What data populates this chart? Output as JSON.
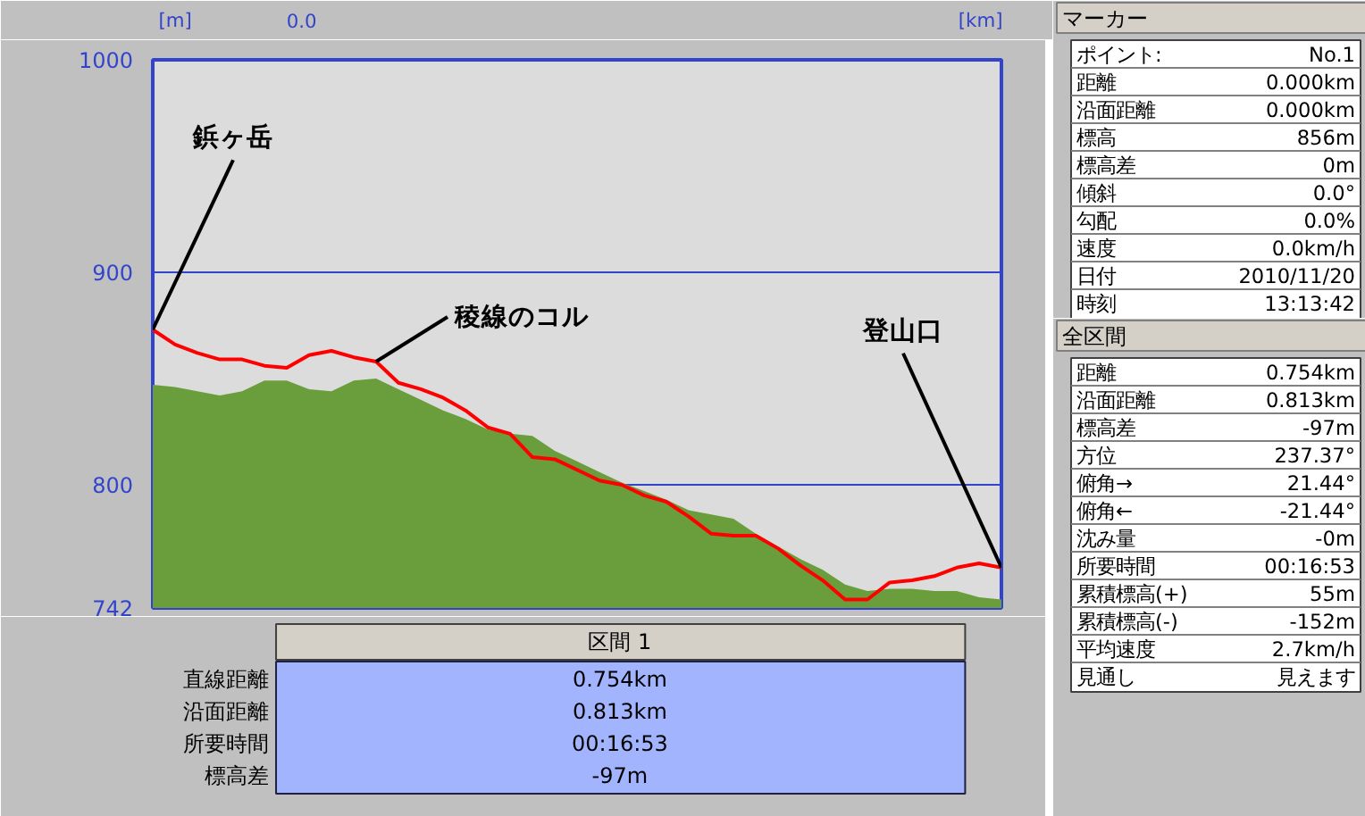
{
  "chart_data": {
    "type": "area",
    "xlabel": "[km]",
    "ylabel": "[m]",
    "ylim": [
      742,
      1000
    ],
    "yticks": [
      742,
      800,
      900,
      1000
    ],
    "grid": "y",
    "categories": [
      null,
      null,
      null,
      null,
      null,
      null,
      null,
      null,
      null,
      null,
      null,
      null,
      null,
      null,
      null,
      null,
      null,
      null,
      null,
      null,
      null,
      null,
      null,
      null,
      null,
      null,
      null,
      null,
      null,
      null,
      null,
      null,
      null,
      null,
      null,
      null,
      null,
      null,
      null
    ],
    "annotations": [
      "鋲ヶ岳",
      "稜線のコル",
      "登山口",
      "0.0",
      "区間 1",
      "直線距離",
      "0.754km",
      "沿面距離",
      "0.813km",
      "所要時間",
      "00:16:53",
      "標高差",
      "-97m",
      "マーカー",
      "ポイント:",
      "No.1",
      "距離",
      "0.000km",
      "沿面距離",
      "0.000km",
      "標高",
      "856m",
      "標高差",
      "0m",
      "傾斜",
      "0.0°",
      "勾配",
      "0.0%",
      "速度",
      "0.0km/h",
      "日付",
      "2010/11/20",
      "時刻",
      "13:13:42",
      "全区間",
      "距離",
      "0.754km",
      "沿面距離",
      "0.813km",
      "標高差",
      "-97m",
      "方位",
      "237.37°",
      "俯角→",
      "21.44°",
      "俯角←",
      "-21.44°",
      "沈み量",
      "-0m",
      "所要時間",
      "00:16:53",
      "累積標高(+)",
      "55m",
      "累積標高(-)",
      "-152m",
      "平均速度",
      "2.7km/h",
      "見通し",
      "見えます"
    ],
    "series": [
      {
        "type": "area",
        "color": "#6a9e3c",
        "values": [
          847,
          846,
          844,
          842,
          844,
          849,
          849,
          845,
          844,
          849,
          850,
          845,
          840,
          835,
          831,
          826,
          824,
          823,
          816,
          811,
          806,
          801,
          797,
          793,
          788,
          786,
          784,
          777,
          771,
          765,
          760,
          753,
          750,
          751,
          751,
          750,
          750,
          747,
          746
        ]
      },
      {
        "type": "line",
        "color": "#ff0000",
        "values": [
          873,
          866,
          862,
          859,
          859,
          856,
          855,
          861,
          863,
          860,
          858,
          848,
          845,
          841,
          835,
          827,
          824,
          813,
          812,
          807,
          802,
          800,
          795,
          792,
          785,
          777,
          776,
          776,
          770,
          762,
          755,
          746,
          746,
          754,
          755,
          757,
          761,
          763,
          761
        ]
      }
    ]
  }
}
